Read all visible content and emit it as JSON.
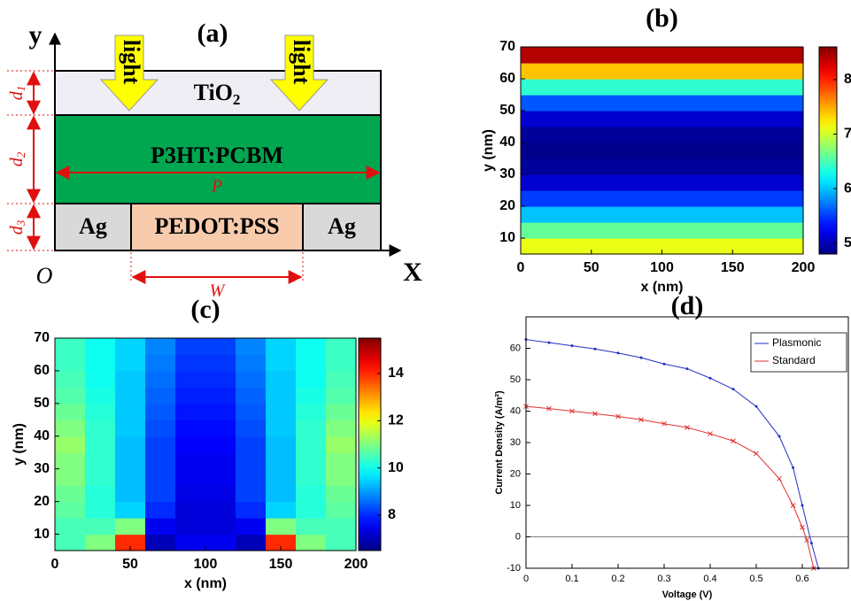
{
  "diagram": {
    "label": "(a)",
    "y_axis": "y",
    "x_axis": "X",
    "origin": "O",
    "light": [
      "light",
      "light"
    ],
    "layers": {
      "top": {
        "name": "TiO",
        "sub": "2"
      },
      "middle": "P3HT:PCBM",
      "bottom": [
        "Ag",
        "PEDOT:PSS",
        "Ag"
      ]
    },
    "period": "P",
    "width": "W",
    "thickness": [
      {
        "symbol": "d",
        "sub": "1"
      },
      {
        "symbol": "d",
        "sub": "2"
      },
      {
        "symbol": "d",
        "sub": "3"
      }
    ]
  },
  "chart_data": [
    {
      "type": "heatmap",
      "title": "(b)",
      "xlabel": "x (nm)",
      "ylabel": "y (nm)",
      "x": [
        100
      ],
      "y": [
        7.5,
        12.5,
        17.5,
        22.5,
        27.5,
        32.5,
        37.5,
        42.5,
        47.5,
        52.5,
        57.5,
        62.5,
        67.5
      ],
      "values": [
        [
          7.1
        ],
        [
          6.6
        ],
        [
          6.0
        ],
        [
          5.5
        ],
        [
          5.1
        ],
        [
          4.9
        ],
        [
          4.85
        ],
        [
          4.9
        ],
        [
          5.1
        ],
        [
          5.6
        ],
        [
          6.4
        ],
        [
          7.4
        ],
        [
          8.4
        ]
      ],
      "xlim": [
        0,
        200
      ],
      "ylim": [
        5,
        70
      ],
      "xticks": [
        0,
        50,
        100,
        150,
        200
      ],
      "yticks": [
        10,
        20,
        30,
        40,
        50,
        60,
        70
      ],
      "colormap": "jet",
      "clim": [
        4.8,
        8.6
      ],
      "cticks": [
        5,
        6,
        7,
        8
      ]
    },
    {
      "type": "heatmap",
      "title": "(c)",
      "xlabel": "x (nm)",
      "ylabel": "y (nm)",
      "x": [
        10,
        30,
        50,
        70,
        90,
        110,
        130,
        150,
        170,
        190
      ],
      "y": [
        7.5,
        12.5,
        17.5,
        22.5,
        27.5,
        32.5,
        37.5,
        42.5,
        47.5,
        52.5,
        57.5,
        62.5,
        67.5
      ],
      "values": [
        [
          10.5,
          11,
          14,
          7,
          7.5,
          7.5,
          7,
          14,
          11,
          10.5
        ],
        [
          10.5,
          10.5,
          11,
          7.5,
          7.3,
          7.3,
          7.5,
          11,
          10.5,
          10.5
        ],
        [
          10.7,
          10.2,
          9.5,
          8,
          7.3,
          7.3,
          8,
          9.5,
          10.2,
          10.7
        ],
        [
          10.8,
          10.2,
          9.3,
          8.2,
          7.4,
          7.4,
          8.2,
          9.3,
          10.2,
          10.8
        ],
        [
          11,
          10.3,
          9.3,
          8.2,
          7.5,
          7.5,
          8.2,
          9.3,
          10.3,
          11
        ],
        [
          11,
          10.3,
          9.3,
          8.2,
          7.5,
          7.5,
          8.2,
          9.3,
          10.3,
          11
        ],
        [
          11.2,
          10.3,
          9.3,
          8.2,
          7.6,
          7.6,
          8.2,
          9.3,
          10.3,
          11.2
        ],
        [
          11,
          10.3,
          9.4,
          8.3,
          7.7,
          7.7,
          8.3,
          9.4,
          10.3,
          11
        ],
        [
          10.8,
          10.2,
          9.4,
          8.4,
          7.8,
          7.8,
          8.4,
          9.4,
          10.2,
          10.8
        ],
        [
          10.6,
          10.1,
          9.4,
          8.5,
          7.9,
          7.9,
          8.5,
          9.4,
          10.1,
          10.6
        ],
        [
          10.5,
          10,
          9.4,
          8.6,
          8,
          8,
          8.6,
          9.4,
          10,
          10.5
        ],
        [
          10.4,
          10,
          9.5,
          8.7,
          8.1,
          8.1,
          8.7,
          9.5,
          10,
          10.4
        ],
        [
          10.4,
          10,
          9.5,
          8.8,
          8.2,
          8.2,
          8.8,
          9.5,
          10,
          10.4
        ]
      ],
      "xlim": [
        0,
        200
      ],
      "ylim": [
        5,
        70
      ],
      "xticks": [
        0,
        50,
        100,
        150,
        200
      ],
      "yticks": [
        10,
        20,
        30,
        40,
        50,
        60,
        70
      ],
      "colormap": "jet",
      "clim": [
        6.5,
        15.5
      ],
      "cticks": [
        8,
        10,
        12,
        14
      ]
    },
    {
      "type": "line",
      "title": "(d)",
      "xlabel": "Voltage (V)",
      "ylabel": "Current Density (A/m²)",
      "xlim": [
        0,
        0.7
      ],
      "ylim": [
        -10,
        70
      ],
      "xticks": [
        0,
        0.1,
        0.2,
        0.3,
        0.4,
        0.5,
        0.6
      ],
      "yticks": [
        -10,
        0,
        10,
        20,
        30,
        40,
        50,
        60
      ],
      "hline": 0,
      "legend": "upper right",
      "series": [
        {
          "name": "Plasmonic",
          "color": "#1f2fbf",
          "marker": "dot",
          "x": [
            0,
            0.05,
            0.1,
            0.15,
            0.2,
            0.25,
            0.3,
            0.35,
            0.4,
            0.45,
            0.5,
            0.55,
            0.58,
            0.6,
            0.62,
            0.635
          ],
          "values": [
            62.8,
            61.8,
            60.8,
            59.8,
            58.5,
            57,
            55,
            53.5,
            50.5,
            47,
            41.5,
            32,
            22,
            10,
            -2,
            -10
          ]
        },
        {
          "name": "Standard",
          "color": "#e03030",
          "marker": "x",
          "x": [
            0,
            0.05,
            0.1,
            0.15,
            0.2,
            0.25,
            0.3,
            0.35,
            0.4,
            0.45,
            0.5,
            0.55,
            0.58,
            0.6,
            0.61,
            0.625
          ],
          "values": [
            41.5,
            40.8,
            40,
            39.2,
            38.3,
            37.3,
            36,
            34.8,
            32.8,
            30.5,
            26.5,
            18.5,
            10,
            3,
            -1,
            -10
          ]
        }
      ]
    }
  ]
}
